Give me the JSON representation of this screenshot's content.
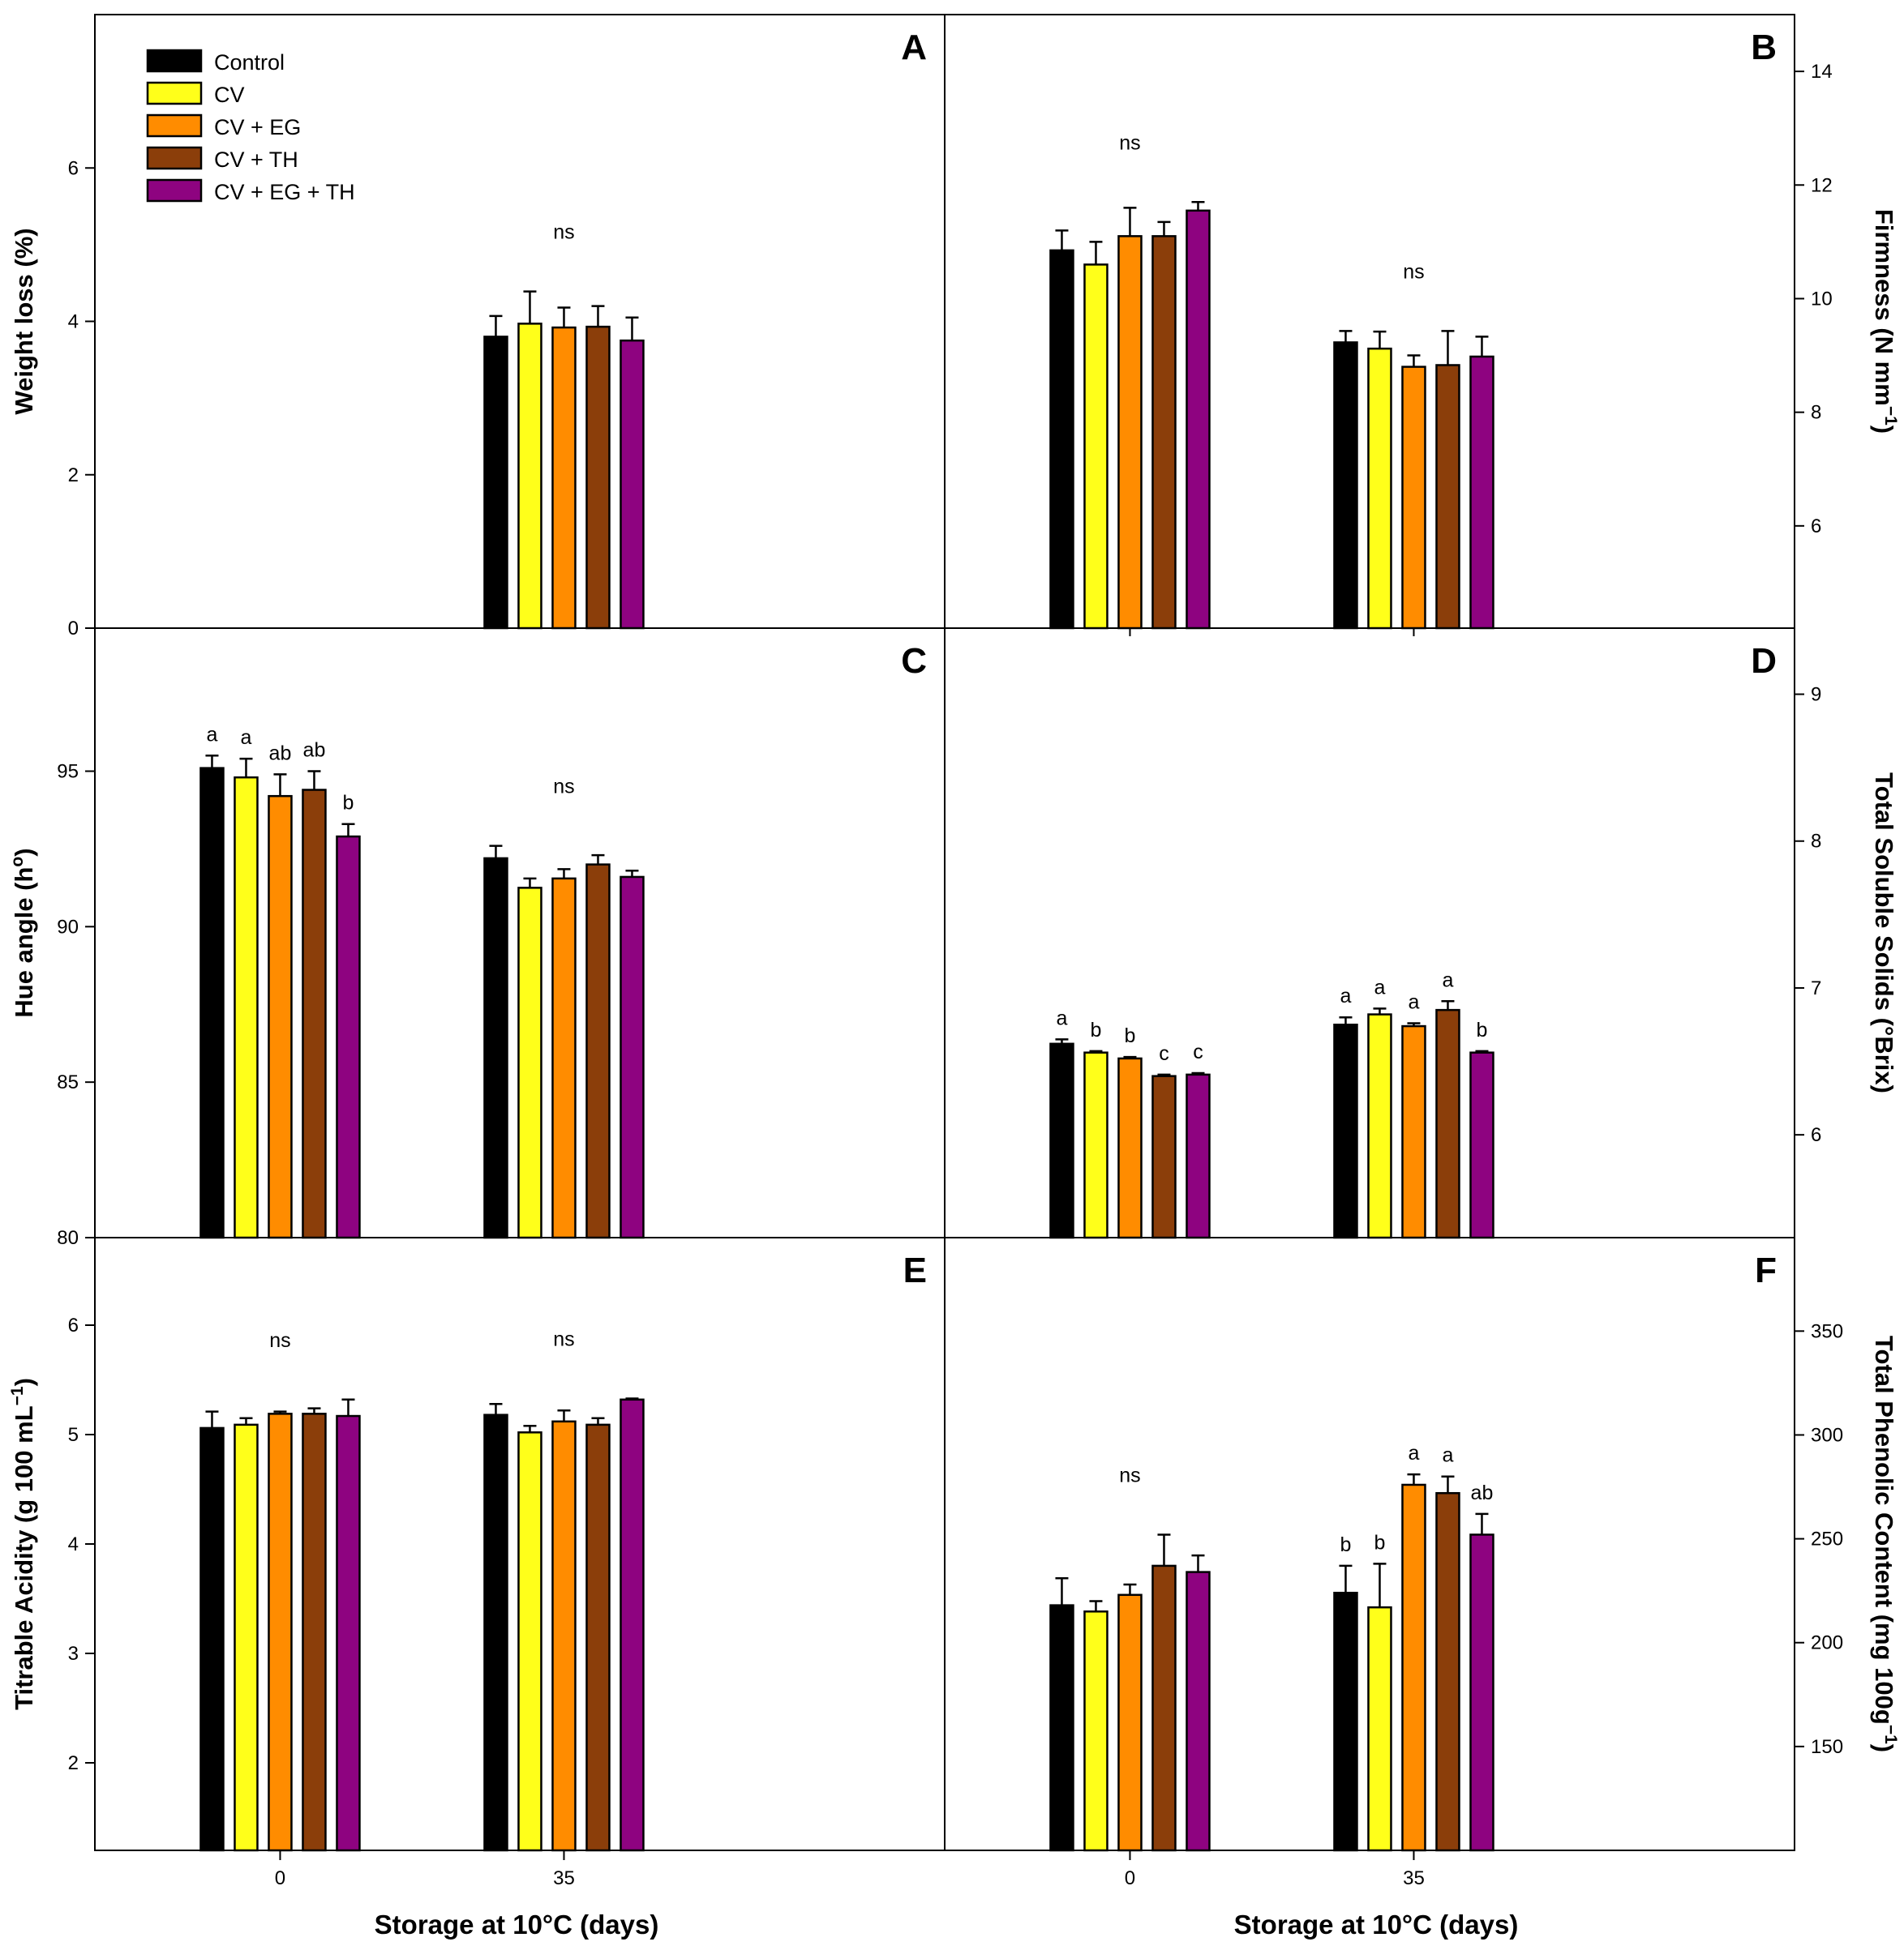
{
  "colors": {
    "Control": "#000000",
    "CV": "#ffff1a",
    "CV + EG": "#ff8c00",
    "CV + TH": "#8b3e0a",
    "CV + EG + TH": "#8e0380"
  },
  "legend": [
    "Control",
    "CV",
    "CV + EG",
    "CV + TH",
    "CV + EG + TH"
  ],
  "xlabel": "Storage at 10°C (days)",
  "x_categories": [
    "0",
    "35"
  ],
  "chart_data": [
    {
      "id": "A",
      "type": "bar",
      "ylabel": "Weight loss (%)",
      "ylim": [
        0,
        8
      ],
      "yticks": [
        0,
        2,
        4,
        6
      ],
      "categories": [
        "0",
        "35"
      ],
      "series": [
        {
          "name": "Control",
          "values": [
            null,
            3.8
          ],
          "errors": [
            null,
            0.27
          ]
        },
        {
          "name": "CV",
          "values": [
            null,
            3.97
          ],
          "errors": [
            null,
            0.42
          ]
        },
        {
          "name": "CV + EG",
          "values": [
            null,
            3.92
          ],
          "errors": [
            null,
            0.26
          ]
        },
        {
          "name": "CV + TH",
          "values": [
            null,
            3.93
          ],
          "errors": [
            null,
            0.27
          ]
        },
        {
          "name": "CV + EG + TH",
          "values": [
            null,
            3.75
          ],
          "errors": [
            null,
            0.3
          ]
        }
      ],
      "annotations": [
        {
          "category": "35",
          "series": 2,
          "text": "ns"
        }
      ]
    },
    {
      "id": "B",
      "type": "bar",
      "ylabel": "Firmness (N mm",
      "ylabel_sup": "−1",
      "ylabel_end": ")",
      "ylim": [
        4.2,
        15
      ],
      "yticks": [
        6,
        8,
        10,
        12,
        14
      ],
      "categories": [
        "0",
        "35"
      ],
      "series": [
        {
          "name": "Control",
          "values": [
            10.85,
            9.23
          ],
          "errors": [
            0.35,
            0.2
          ]
        },
        {
          "name": "CV",
          "values": [
            10.6,
            9.12
          ],
          "errors": [
            0.4,
            0.3
          ]
        },
        {
          "name": "CV + EG",
          "values": [
            11.1,
            8.8
          ],
          "errors": [
            0.5,
            0.2
          ]
        },
        {
          "name": "CV + TH",
          "values": [
            11.1,
            8.83
          ],
          "errors": [
            0.25,
            0.6
          ]
        },
        {
          "name": "CV + EG + TH",
          "values": [
            11.55,
            8.98
          ],
          "errors": [
            0.15,
            0.35
          ]
        }
      ],
      "annotations": [
        {
          "category": "0",
          "series": 2,
          "text": "ns"
        },
        {
          "category": "35",
          "series": 2,
          "text": "ns"
        }
      ]
    },
    {
      "id": "C",
      "type": "bar",
      "ylabel": "Hue angle (h",
      "ylabel_sup": "o",
      "ylabel_end": ")",
      "ylim": [
        80,
        99.6
      ],
      "yticks": [
        80,
        85,
        90,
        95
      ],
      "categories": [
        "0",
        "35"
      ],
      "series": [
        {
          "name": "Control",
          "values": [
            95.1,
            92.2
          ],
          "errors": [
            0.4,
            0.4
          ]
        },
        {
          "name": "CV",
          "values": [
            94.8,
            91.25
          ],
          "errors": [
            0.6,
            0.3
          ]
        },
        {
          "name": "CV + EG",
          "values": [
            94.2,
            91.55
          ],
          "errors": [
            0.7,
            0.3
          ]
        },
        {
          "name": "CV + TH",
          "values": [
            94.4,
            92.0
          ],
          "errors": [
            0.6,
            0.3
          ]
        },
        {
          "name": "CV + EG + TH",
          "values": [
            92.9,
            91.6
          ],
          "errors": [
            0.4,
            0.2
          ]
        }
      ],
      "annotations": [
        {
          "category": "0",
          "series": 0,
          "text": "a"
        },
        {
          "category": "0",
          "series": 1,
          "text": "a"
        },
        {
          "category": "0",
          "series": 2,
          "text": "ab"
        },
        {
          "category": "0",
          "series": 3,
          "text": "ab"
        },
        {
          "category": "0",
          "series": 4,
          "text": "b"
        },
        {
          "category": "35",
          "series": 2,
          "text": "ns"
        }
      ]
    },
    {
      "id": "D",
      "type": "bar",
      "ylabel": "Total Soluble Solids (°Brix)",
      "ylim": [
        5.3,
        9.45
      ],
      "yticks": [
        6,
        7,
        8,
        9
      ],
      "categories": [
        "0",
        "35"
      ],
      "series": [
        {
          "name": "Control",
          "values": [
            6.62,
            6.75
          ],
          "errors": [
            0.03,
            0.05
          ]
        },
        {
          "name": "CV",
          "values": [
            6.56,
            6.82
          ],
          "errors": [
            0.01,
            0.04
          ]
        },
        {
          "name": "CV + EG",
          "values": [
            6.52,
            6.74
          ],
          "errors": [
            0.01,
            0.02
          ]
        },
        {
          "name": "CV + TH",
          "values": [
            6.4,
            6.85
          ],
          "errors": [
            0.01,
            0.06
          ]
        },
        {
          "name": "CV + EG + TH",
          "values": [
            6.41,
            6.56
          ],
          "errors": [
            0.01,
            0.01
          ]
        }
      ],
      "annotations": [
        {
          "category": "0",
          "series": 0,
          "text": "a"
        },
        {
          "category": "0",
          "series": 1,
          "text": "b"
        },
        {
          "category": "0",
          "series": 2,
          "text": "b"
        },
        {
          "category": "0",
          "series": 3,
          "text": "c"
        },
        {
          "category": "0",
          "series": 4,
          "text": "c"
        },
        {
          "category": "35",
          "series": 0,
          "text": "a"
        },
        {
          "category": "35",
          "series": 1,
          "text": "a"
        },
        {
          "category": "35",
          "series": 2,
          "text": "a"
        },
        {
          "category": "35",
          "series": 3,
          "text": "a"
        },
        {
          "category": "35",
          "series": 4,
          "text": "b"
        }
      ]
    },
    {
      "id": "E",
      "type": "bar",
      "ylabel": "Titrable Acidity (g 100 mL",
      "ylabel_sup": "−1",
      "ylabel_end": ")",
      "ylim": [
        1.2,
        6.8
      ],
      "yticks": [
        2,
        3,
        4,
        5,
        6
      ],
      "categories": [
        "0",
        "35"
      ],
      "series": [
        {
          "name": "Control",
          "values": [
            5.06,
            5.18
          ],
          "errors": [
            0.15,
            0.1
          ]
        },
        {
          "name": "CV",
          "values": [
            5.09,
            5.02
          ],
          "errors": [
            0.06,
            0.06
          ]
        },
        {
          "name": "CV + EG",
          "values": [
            5.19,
            5.12
          ],
          "errors": [
            0.02,
            0.1
          ]
        },
        {
          "name": "CV + TH",
          "values": [
            5.19,
            5.09
          ],
          "errors": [
            0.05,
            0.06
          ]
        },
        {
          "name": "CV + EG + TH",
          "values": [
            5.17,
            5.32
          ],
          "errors": [
            0.15,
            0.01
          ]
        }
      ],
      "annotations": [
        {
          "category": "0",
          "series": 2,
          "text": "ns"
        },
        {
          "category": "35",
          "series": 2,
          "text": "ns"
        }
      ]
    },
    {
      "id": "F",
      "type": "bar",
      "ylabel": "Total Phenolic Content (mg 100g",
      "ylabel_sup": "−1",
      "ylabel_end": ")",
      "ylim": [
        100,
        395
      ],
      "yticks": [
        150,
        200,
        250,
        300,
        350
      ],
      "categories": [
        "0",
        "35"
      ],
      "series": [
        {
          "name": "Control",
          "values": [
            218,
            224
          ],
          "errors": [
            13,
            13
          ]
        },
        {
          "name": "CV",
          "values": [
            215,
            217
          ],
          "errors": [
            5,
            21
          ]
        },
        {
          "name": "CV + EG",
          "values": [
            223,
            276
          ],
          "errors": [
            5,
            5
          ]
        },
        {
          "name": "CV + TH",
          "values": [
            237,
            272
          ],
          "errors": [
            15,
            8
          ]
        },
        {
          "name": "CV + EG + TH",
          "values": [
            234,
            252
          ],
          "errors": [
            8,
            10
          ]
        }
      ],
      "annotations": [
        {
          "category": "0",
          "series": 2,
          "text": "ns"
        },
        {
          "category": "35",
          "series": 0,
          "text": "b"
        },
        {
          "category": "35",
          "series": 1,
          "text": "b"
        },
        {
          "category": "35",
          "series": 2,
          "text": "a"
        },
        {
          "category": "35",
          "series": 3,
          "text": "a"
        },
        {
          "category": "35",
          "series": 4,
          "text": "ab"
        }
      ]
    }
  ]
}
